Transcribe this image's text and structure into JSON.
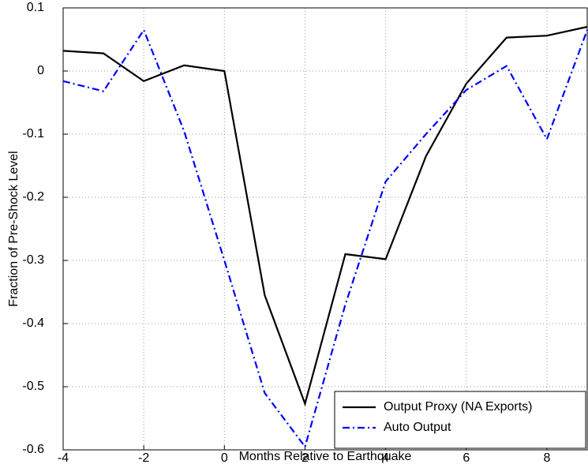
{
  "chart_data": {
    "type": "line",
    "xlabel": "Months Relative to Earthquake",
    "ylabel": "Fraction of Pre-Shock Level",
    "x": [
      -4,
      -3,
      -2,
      -1,
      0,
      1,
      2,
      3,
      4,
      5,
      6,
      7,
      8,
      9
    ],
    "series": [
      {
        "name": "Output Proxy (NA Exports)",
        "color": "#000000",
        "linestyle": "solid",
        "values": [
          0.032,
          0.028,
          -0.016,
          0.009,
          0.0,
          -0.355,
          -0.527,
          -0.29,
          -0.298,
          -0.135,
          -0.02,
          0.053,
          0.056,
          0.07
        ]
      },
      {
        "name": "Auto Output",
        "color": "#0000ff",
        "linestyle": "dashdot",
        "values": [
          -0.016,
          -0.032,
          0.065,
          -0.095,
          -0.3,
          -0.51,
          -0.595,
          -0.37,
          -0.175,
          -0.1,
          -0.03,
          0.008,
          -0.108,
          0.065
        ]
      }
    ],
    "xlim": [
      -4,
      9
    ],
    "xticks": [
      -4,
      -2,
      0,
      2,
      4,
      6,
      8
    ],
    "ylim": [
      -0.6,
      0.1
    ],
    "yticks": [
      0.1,
      0,
      -0.1,
      -0.2,
      -0.3,
      -0.4,
      -0.5,
      -0.6
    ],
    "grid": true,
    "legend": "lower right"
  }
}
